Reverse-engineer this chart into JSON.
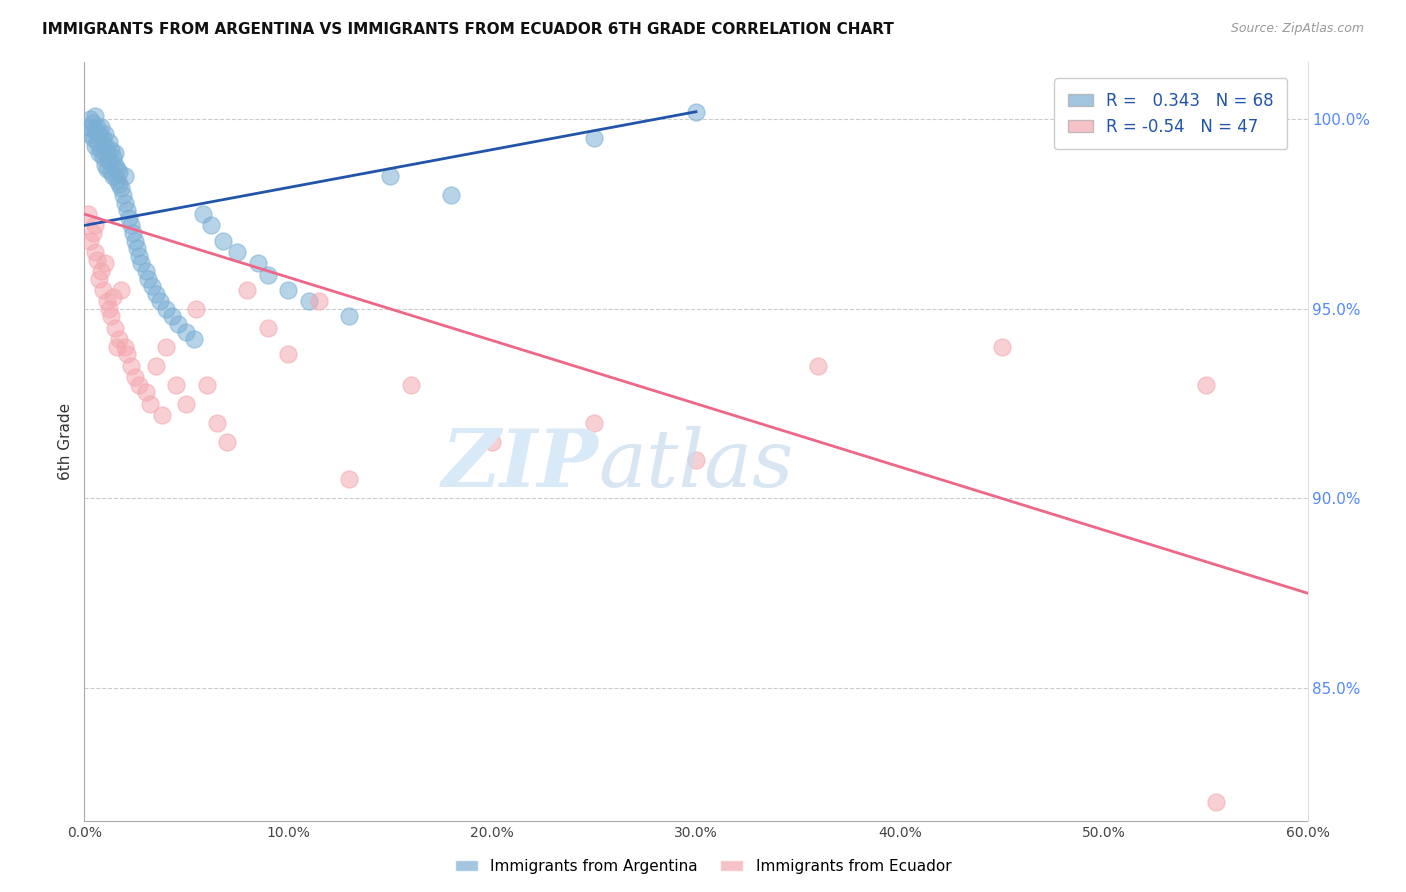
{
  "title": "IMMIGRANTS FROM ARGENTINA VS IMMIGRANTS FROM ECUADOR 6TH GRADE CORRELATION CHART",
  "source": "Source: ZipAtlas.com",
  "ylabel": "6th Grade",
  "right_yticks": [
    100.0,
    95.0,
    90.0,
    85.0
  ],
  "right_ytick_labels": [
    "100.0%",
    "95.0%",
    "90.0%",
    "85.0%"
  ],
  "xlim": [
    0.0,
    60.0
  ],
  "ylim": [
    81.5,
    101.5
  ],
  "argentina_R": 0.343,
  "argentina_N": 68,
  "ecuador_R": -0.54,
  "ecuador_N": 47,
  "argentina_color": "#7BAFD4",
  "ecuador_color": "#F4A8B0",
  "argentina_line_color": "#2255AA",
  "ecuador_line_color": "#EE6688",
  "legend_label_argentina": "Immigrants from Argentina",
  "legend_label_ecuador": "Immigrants from Ecuador",
  "argentina_trend_x0": 0.0,
  "argentina_trend_y0": 97.2,
  "argentina_trend_x1": 30.0,
  "argentina_trend_y1": 100.2,
  "ecuador_trend_x0": 0.0,
  "ecuador_trend_y0": 97.5,
  "ecuador_trend_x1": 60.0,
  "ecuador_trend_y1": 87.5,
  "argentina_scatter_x": [
    0.2,
    0.3,
    0.3,
    0.4,
    0.4,
    0.5,
    0.5,
    0.5,
    0.6,
    0.6,
    0.7,
    0.7,
    0.8,
    0.8,
    0.9,
    0.9,
    1.0,
    1.0,
    1.0,
    1.1,
    1.1,
    1.2,
    1.2,
    1.3,
    1.3,
    1.4,
    1.4,
    1.5,
    1.5,
    1.6,
    1.6,
    1.7,
    1.7,
    1.8,
    1.9,
    2.0,
    2.0,
    2.1,
    2.2,
    2.3,
    2.4,
    2.5,
    2.6,
    2.7,
    2.8,
    3.0,
    3.1,
    3.3,
    3.5,
    3.7,
    4.0,
    4.3,
    4.6,
    5.0,
    5.4,
    5.8,
    6.2,
    6.8,
    7.5,
    8.5,
    9.0,
    10.0,
    11.0,
    13.0,
    15.0,
    18.0,
    25.0,
    30.0
  ],
  "argentina_scatter_y": [
    99.8,
    99.6,
    100.0,
    99.5,
    99.9,
    99.7,
    99.3,
    100.1,
    99.4,
    99.8,
    99.6,
    99.1,
    99.8,
    99.2,
    99.5,
    99.0,
    99.3,
    98.8,
    99.6,
    99.1,
    98.7,
    99.4,
    98.9,
    99.2,
    98.6,
    99.0,
    98.5,
    98.8,
    99.1,
    98.4,
    98.7,
    98.3,
    98.6,
    98.2,
    98.0,
    97.8,
    98.5,
    97.6,
    97.4,
    97.2,
    97.0,
    96.8,
    96.6,
    96.4,
    96.2,
    96.0,
    95.8,
    95.6,
    95.4,
    95.2,
    95.0,
    94.8,
    94.6,
    94.4,
    94.2,
    97.5,
    97.2,
    96.8,
    96.5,
    96.2,
    95.9,
    95.5,
    95.2,
    94.8,
    98.5,
    98.0,
    99.5,
    100.2
  ],
  "ecuador_scatter_x": [
    0.2,
    0.3,
    0.4,
    0.5,
    0.5,
    0.6,
    0.7,
    0.8,
    0.9,
    1.0,
    1.1,
    1.2,
    1.3,
    1.4,
    1.5,
    1.6,
    1.7,
    1.8,
    2.0,
    2.1,
    2.3,
    2.5,
    2.7,
    3.0,
    3.2,
    3.5,
    3.8,
    4.0,
    4.5,
    5.0,
    5.5,
    6.0,
    6.5,
    7.0,
    8.0,
    9.0,
    10.0,
    11.5,
    13.0,
    16.0,
    20.0,
    25.0,
    30.0,
    36.0,
    45.0,
    55.0,
    55.5
  ],
  "ecuador_scatter_y": [
    97.5,
    96.8,
    97.0,
    96.5,
    97.2,
    96.3,
    95.8,
    96.0,
    95.5,
    96.2,
    95.2,
    95.0,
    94.8,
    95.3,
    94.5,
    94.0,
    94.2,
    95.5,
    94.0,
    93.8,
    93.5,
    93.2,
    93.0,
    92.8,
    92.5,
    93.5,
    92.2,
    94.0,
    93.0,
    92.5,
    95.0,
    93.0,
    92.0,
    91.5,
    95.5,
    94.5,
    93.8,
    95.2,
    90.5,
    93.0,
    91.5,
    92.0,
    91.0,
    93.5,
    94.0,
    93.0,
    82.0
  ]
}
